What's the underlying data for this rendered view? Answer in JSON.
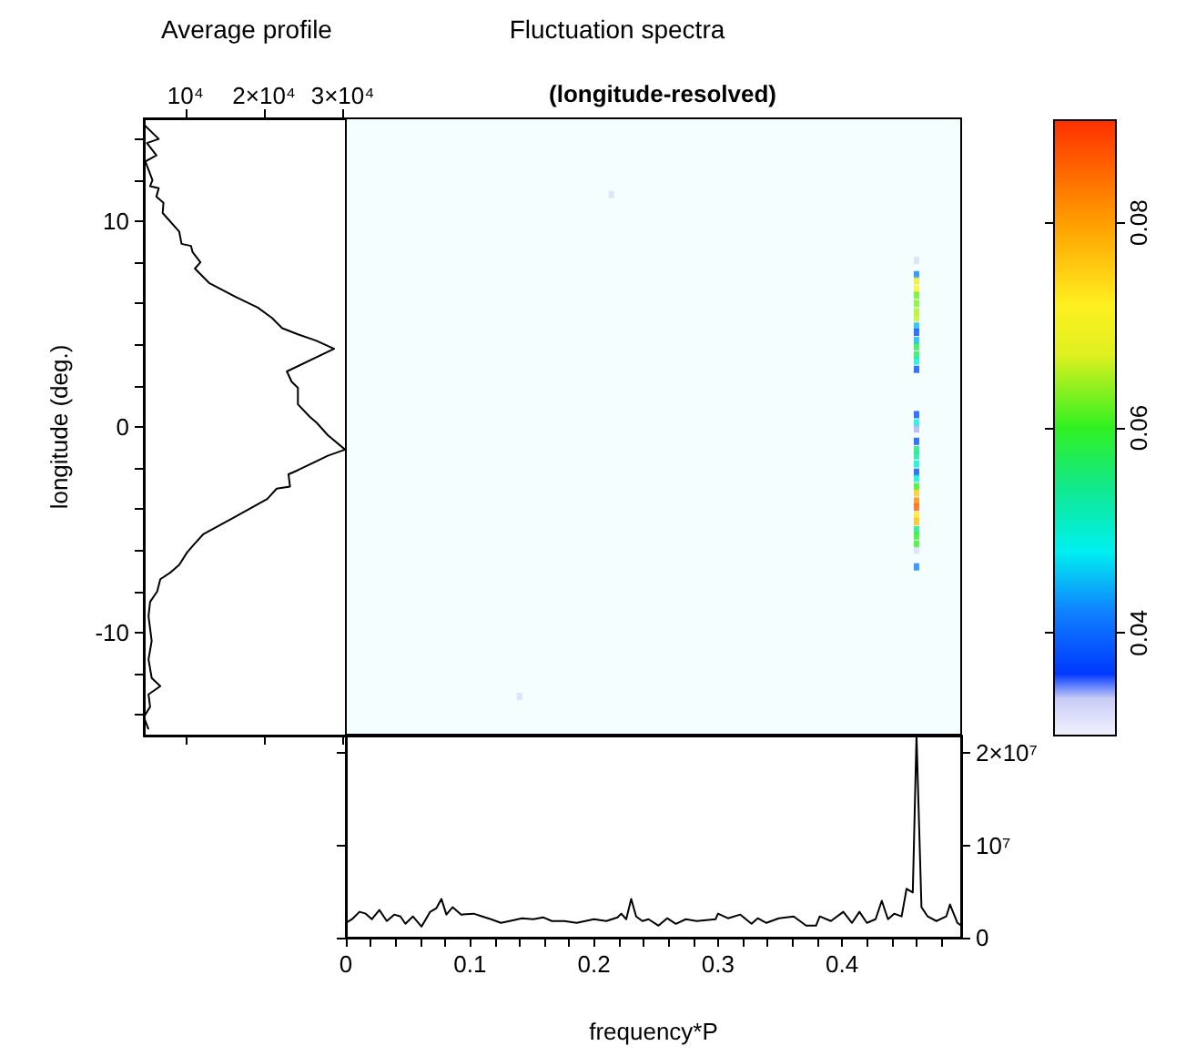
{
  "chart_data": [
    {
      "type": "line",
      "title": "Average profile",
      "ylabel": "longitude (deg.)",
      "xlim": [
        4700,
        30400
      ],
      "xticks": [
        {
          "value": 10000,
          "label": "10⁴"
        },
        {
          "value": 20000,
          "label": "2×10⁴"
        },
        {
          "value": 30000,
          "label": "3×10⁴"
        }
      ],
      "ylim": [
        -15,
        15
      ],
      "yticks": [
        {
          "value": -14,
          "label": null
        },
        {
          "value": -12,
          "label": null
        },
        -10,
        {
          "value": -8,
          "label": null
        },
        {
          "value": -6,
          "label": null
        },
        {
          "value": -4,
          "label": null
        },
        {
          "value": -2,
          "label": null
        },
        0,
        {
          "value": 2,
          "label": null
        },
        {
          "value": 4,
          "label": null
        },
        {
          "value": 6,
          "label": null
        },
        {
          "value": 8,
          "label": null
        },
        10,
        {
          "value": 12,
          "label": null
        },
        {
          "value": 14,
          "label": null
        }
      ],
      "series": [
        {
          "color": "#000000",
          "x": [
            4700,
            6600,
            5100,
            6300,
            4900,
            5800,
            5500,
            6600,
            6300,
            7200,
            7100,
            9200,
            9500,
            10700,
            10900,
            11900,
            11200,
            13000,
            16500,
            19200,
            21000,
            22300,
            24300,
            26600,
            28900,
            22900,
            23500,
            24300,
            24300,
            25800,
            26700,
            28100,
            30300,
            28100,
            24300,
            23100,
            23300,
            21600,
            20400,
            15700,
            12300,
            11100,
            10200,
            9200,
            8000,
            6800,
            6400,
            5500,
            5300,
            5700,
            5300,
            5700,
            6800,
            5300,
            5500,
            4700,
            5300
          ],
          "values": [
            14.7,
            14.0,
            13.8,
            13.2,
            12.9,
            12.0,
            11.7,
            11.6,
            11.2,
            10.9,
            10.4,
            9.5,
            8.9,
            8.8,
            8.5,
            8.0,
            7.7,
            7.0,
            6.3,
            5.8,
            5.3,
            4.8,
            4.5,
            4.2,
            3.8,
            2.7,
            2.2,
            1.9,
            1.1,
            0.5,
            0.2,
            -0.4,
            -1.1,
            -1.4,
            -2.1,
            -2.3,
            -2.9,
            -3.0,
            -3.5,
            -4.5,
            -5.2,
            -5.7,
            -6.1,
            -6.7,
            -7.1,
            -7.4,
            -8.0,
            -8.5,
            -9.2,
            -10.4,
            -11.3,
            -12.2,
            -12.6,
            -13.0,
            -13.6,
            -14.1,
            -14.7
          ]
        }
      ]
    },
    {
      "type": "scatter",
      "title": "Fluctuation spectra",
      "subtitle": "(longitude-resolved)",
      "marker": "square",
      "tick_labels": false,
      "xlim": [
        0,
        0.496
      ],
      "ylim": [
        -15,
        15
      ],
      "clim": [
        0.03,
        0.09
      ],
      "cticks": [
        0.04,
        0.06,
        0.08
      ],
      "x": [
        0.46,
        0.46,
        0.46,
        0.46,
        0.46,
        0.46,
        0.46,
        0.46,
        0.46,
        0.46,
        0.46,
        0.46,
        0.46,
        0.46,
        0.46,
        0.46,
        0.46,
        0.46,
        0.46,
        0.46,
        0.46,
        0.46,
        0.46,
        0.46,
        0.46,
        0.46,
        0.46,
        0.46,
        0.46,
        0.46,
        0.46,
        0.46,
        0.46,
        0.46,
        0.46,
        0.214,
        0.14
      ],
      "values": [
        8.1,
        7.4,
        7.1,
        6.7,
        6.4,
        6.0,
        5.6,
        5.3,
        4.9,
        4.6,
        4.2,
        3.9,
        3.5,
        3.2,
        2.8,
        0.6,
        0.2,
        -0.1,
        -0.7,
        -1.1,
        -1.4,
        -1.8,
        -2.2,
        -2.5,
        -2.9,
        -3.2,
        -3.6,
        -3.9,
        -4.3,
        -4.6,
        -5.0,
        -5.3,
        -5.7,
        -6.0,
        -6.8,
        11.3,
        -13.1
      ],
      "cvalues": [
        0.032,
        0.042,
        0.068,
        0.072,
        0.062,
        0.063,
        0.065,
        0.066,
        0.045,
        0.038,
        0.045,
        0.058,
        0.057,
        0.05,
        0.038,
        0.038,
        0.049,
        0.034,
        0.038,
        0.055,
        0.053,
        0.05,
        0.038,
        0.05,
        0.06,
        0.076,
        0.082,
        0.086,
        0.073,
        0.077,
        0.055,
        0.06,
        0.06,
        0.032,
        0.042,
        0.032,
        0.032
      ]
    },
    {
      "type": "line",
      "xlabel": "frequency*P",
      "xlim": [
        0,
        0.496
      ],
      "xticks": [
        0,
        {
          "value": 0.02,
          "label": null
        },
        {
          "value": 0.04,
          "label": null
        },
        {
          "value": 0.06,
          "label": null
        },
        {
          "value": 0.08,
          "label": null
        },
        0.1,
        {
          "value": 0.12,
          "label": null
        },
        {
          "value": 0.14,
          "label": null
        },
        {
          "value": 0.16,
          "label": null
        },
        {
          "value": 0.18,
          "label": null
        },
        0.2,
        {
          "value": 0.22,
          "label": null
        },
        {
          "value": 0.24,
          "label": null
        },
        {
          "value": 0.26,
          "label": null
        },
        {
          "value": 0.28,
          "label": null
        },
        0.3,
        {
          "value": 0.32,
          "label": null
        },
        {
          "value": 0.34,
          "label": null
        },
        {
          "value": 0.36,
          "label": null
        },
        {
          "value": 0.38,
          "label": null
        },
        0.4,
        {
          "value": 0.42,
          "label": null
        },
        {
          "value": 0.44,
          "label": null
        },
        {
          "value": 0.46,
          "label": null
        },
        {
          "value": 0.48,
          "label": null
        }
      ],
      "ylim": [
        0,
        21900000
      ],
      "yticks": [
        0,
        {
          "value": 10000000,
          "label": "10⁷"
        },
        {
          "value": 20000000,
          "label": "2×10⁷"
        }
      ],
      "series": [
        {
          "color": "#000000",
          "x": [
            0,
            0.005,
            0.011,
            0.016,
            0.021,
            0.027,
            0.033,
            0.039,
            0.044,
            0.048,
            0.054,
            0.061,
            0.068,
            0.073,
            0.077,
            0.081,
            0.086,
            0.093,
            0.103,
            0.11,
            0.117,
            0.125,
            0.132,
            0.142,
            0.151,
            0.159,
            0.166,
            0.176,
            0.186,
            0.193,
            0.2,
            0.21,
            0.219,
            0.222,
            0.226,
            0.23,
            0.234,
            0.239,
            0.244,
            0.252,
            0.259,
            0.266,
            0.274,
            0.283,
            0.298,
            0.3,
            0.308,
            0.318,
            0.327,
            0.332,
            0.339,
            0.349,
            0.361,
            0.371,
            0.379,
            0.382,
            0.391,
            0.401,
            0.408,
            0.414,
            0.42,
            0.427,
            0.432,
            0.437,
            0.442,
            0.448,
            0.452,
            0.457,
            0.46,
            0.464,
            0.469,
            0.476,
            0.484,
            0.487,
            0.493,
            0.496
          ],
          "values": [
            1600000,
            2000000,
            2800000,
            2600000,
            2000000,
            3000000,
            1800000,
            2500000,
            2300000,
            1500000,
            2300000,
            1200000,
            2800000,
            3200000,
            4200000,
            2500000,
            3300000,
            2500000,
            2600000,
            2300000,
            2000000,
            1600000,
            1800000,
            2100000,
            2000000,
            2200000,
            1800000,
            1800000,
            1600000,
            1800000,
            2000000,
            1800000,
            2200000,
            2600000,
            2000000,
            4200000,
            2300000,
            1800000,
            2000000,
            1300000,
            2100000,
            1500000,
            2000000,
            1800000,
            2000000,
            2600000,
            2100000,
            2500000,
            1500000,
            2100000,
            1600000,
            2100000,
            2300000,
            1300000,
            1300000,
            2300000,
            1800000,
            2800000,
            1600000,
            2800000,
            1600000,
            2000000,
            4000000,
            2000000,
            2600000,
            2300000,
            5300000,
            4900000,
            21900000,
            3300000,
            2300000,
            1800000,
            2300000,
            3600000,
            1600000,
            1300000
          ]
        }
      ]
    }
  ]
}
